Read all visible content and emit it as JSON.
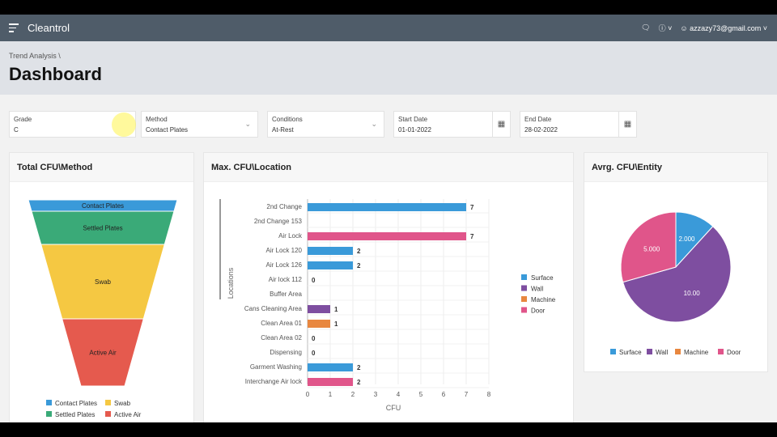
{
  "header": {
    "app_name": "Cleantrol",
    "user_email": "azzazy73@gmail.com",
    "icons": [
      "menu-icon",
      "chat-icon",
      "help-icon",
      "user-icon"
    ]
  },
  "breadcrumb": {
    "parent": "Trend Analysis",
    "separator": "\\"
  },
  "page_title": "Dashboard",
  "filters": [
    {
      "label": "Grade",
      "value": "C"
    },
    {
      "label": "Method",
      "value": "Contact Plates"
    },
    {
      "label": "Conditions",
      "value": "At-Rest"
    },
    {
      "label": "Start Date",
      "value": "01-01-2022"
    },
    {
      "label": "End Date",
      "value": "28-02-2022"
    }
  ],
  "cards": {
    "funnel_title": "Total CFU\\Method",
    "bar_title": "Max. CFU\\Location",
    "pie_title": "Avrg. CFU\\Entity"
  },
  "colors": {
    "Surface": "#3a9ad9",
    "Wall": "#7e4ea0",
    "Machine": "#e8873f",
    "Door": "#e0558a",
    "Contact Plates": "#3a9ad9",
    "Settled Plates": "#3aaa78",
    "Swab": "#f5c842",
    "Active Air": "#e55a4e"
  },
  "chart_data": [
    {
      "type": "funnel",
      "stages": [
        "Contact Plates",
        "Settled Plates",
        "Swab",
        "Active Air"
      ],
      "legend": [
        "Contact Plates",
        "Swab",
        "Settled Plates",
        "Active Air"
      ]
    },
    {
      "type": "bar",
      "orientation": "horizontal",
      "xlabel": "CFU",
      "ylabel": "Locations",
      "xlim": [
        0,
        8
      ],
      "xticks": [
        0,
        1,
        2,
        3,
        4,
        5,
        6,
        7,
        8
      ],
      "grid": true,
      "legend_position": "right",
      "legend": [
        "Surface",
        "Wall",
        "Machine",
        "Door"
      ],
      "categories": [
        "2nd Change",
        "2nd Change 153",
        "Air Lock",
        "Air Lock 120",
        "Air Lock 126",
        "Air lock 112",
        "Buffer Area",
        "Cans Cleaning Area",
        "Clean Area 01",
        "Clean Area 02",
        "Dispensing",
        "Garment Washing",
        "Interchange Air lock"
      ],
      "values": [
        7,
        null,
        7,
        2,
        2,
        0,
        null,
        1,
        1,
        0,
        0,
        2,
        2
      ],
      "series_of": [
        "Surface",
        null,
        "Door",
        "Surface",
        "Surface",
        "Surface",
        null,
        "Wall",
        "Machine",
        "Surface",
        "Surface",
        "Surface",
        "Door"
      ]
    },
    {
      "type": "pie",
      "legend_position": "bottom",
      "labels": [
        "Surface",
        "Wall",
        "Machine",
        "Door"
      ],
      "values": [
        2,
        10,
        0,
        5
      ],
      "data_labels": [
        "2.000",
        "10.00",
        "",
        "5.000"
      ]
    }
  ]
}
